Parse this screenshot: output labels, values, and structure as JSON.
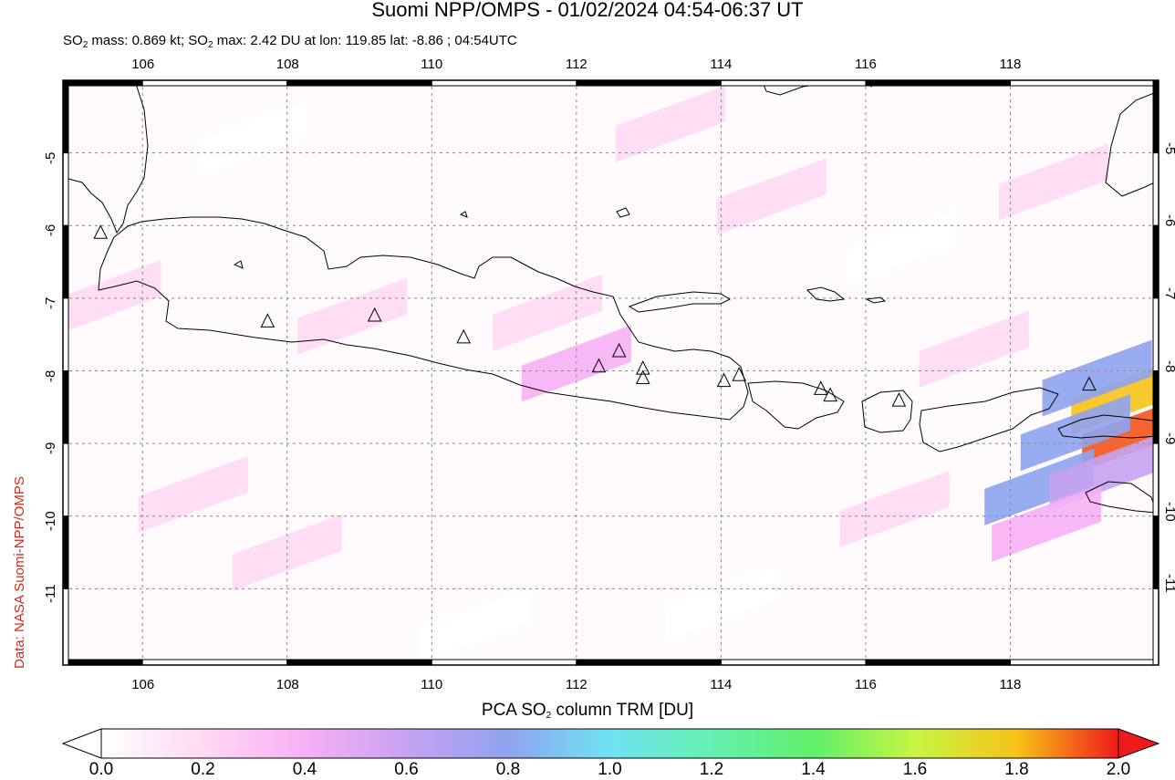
{
  "header": {
    "title": "Suomi NPP/OMPS - 01/02/2024 04:54-06:37 UT",
    "subtitle_parts": [
      "SO",
      "2",
      " mass: 0.869 kt; SO",
      "2",
      " max: 2.42 DU at lon: 119.85 lat: -8.86 ; 04:54UTC"
    ]
  },
  "credit": "Data: NASA Suomi-NPP/OMPS",
  "map": {
    "lon_range": [
      104.9,
      120.05
    ],
    "lat_range": [
      -12.05,
      -4.0
    ],
    "lon_ticks": [
      106,
      108,
      110,
      112,
      114,
      116,
      118
    ],
    "lon_tick_labels": [
      "106",
      "108",
      "110",
      "112",
      "114",
      "116",
      "118"
    ],
    "lat_ticks": [
      -5,
      -6,
      -7,
      -8,
      -9,
      -10,
      -11
    ],
    "lat_tick_labels": [
      "-5",
      "-6",
      "-7",
      "-8",
      "-9",
      "-10",
      "-11"
    ],
    "grid": true,
    "volcano_icon": "triangle-volcano-icon",
    "volcanoes": [
      [
        105.42,
        -6.1
      ],
      [
        107.73,
        -7.32
      ],
      [
        109.21,
        -7.24
      ],
      [
        110.44,
        -7.54
      ],
      [
        112.31,
        -7.94
      ],
      [
        112.59,
        -7.73
      ],
      [
        112.92,
        -7.97
      ],
      [
        112.92,
        -8.1
      ],
      [
        114.04,
        -8.14
      ],
      [
        114.25,
        -8.06
      ],
      [
        115.38,
        -8.25
      ],
      [
        115.51,
        -8.34
      ],
      [
        116.46,
        -8.41
      ],
      [
        119.09,
        -8.19
      ]
    ],
    "so2_cells": [
      {
        "lon": 119.6,
        "lat": -8.35,
        "du": 1.75
      },
      {
        "lon": 119.75,
        "lat": -8.85,
        "du": 2.0
      },
      {
        "lon": 118.9,
        "lat": -8.85,
        "du": 0.75
      },
      {
        "lon": 119.2,
        "lat": -8.1,
        "du": 0.75
      },
      {
        "lon": 118.4,
        "lat": -9.6,
        "du": 0.75
      },
      {
        "lon": 119.3,
        "lat": -9.4,
        "du": 0.55
      },
      {
        "lon": 118.5,
        "lat": -10.1,
        "du": 0.35
      },
      {
        "lon": 112.0,
        "lat": -7.9,
        "du": 0.3
      },
      {
        "lon": 117.5,
        "lat": -7.7,
        "du": 0.12
      },
      {
        "lon": 114.7,
        "lat": -5.6,
        "du": 0.12
      },
      {
        "lon": 108.9,
        "lat": -7.25,
        "du": 0.12
      },
      {
        "lon": 111.6,
        "lat": -7.2,
        "du": 0.1
      },
      {
        "lon": 108.0,
        "lat": -10.5,
        "du": 0.15
      },
      {
        "lon": 116.4,
        "lat": -9.9,
        "du": 0.12
      },
      {
        "lon": 105.5,
        "lat": -7.0,
        "du": 0.1
      },
      {
        "lon": 113.3,
        "lat": -4.6,
        "du": 0.1
      },
      {
        "lon": 118.6,
        "lat": -5.4,
        "du": 0.1
      },
      {
        "lon": 106.7,
        "lat": -9.7,
        "du": 0.1
      },
      {
        "lon": 110.6,
        "lat": -11.5,
        "du": 0.08
      },
      {
        "lon": 114.0,
        "lat": -11.2,
        "du": 0.08
      },
      {
        "lon": 116.5,
        "lat": -6.3,
        "du": 0.08
      },
      {
        "lon": 107.5,
        "lat": -4.8,
        "du": 0.08
      }
    ]
  },
  "colorbar": {
    "title_parts": [
      "PCA SO",
      "2",
      " column TRM [DU]"
    ],
    "labels": [
      "0.0",
      "0.2",
      "0.4",
      "0.6",
      "0.8",
      "1.0",
      "1.2",
      "1.4",
      "1.6",
      "1.8",
      "2.0"
    ],
    "colors": [
      "#ffffff",
      "#ffd9f3",
      "#f7b0f5",
      "#c7a2f2",
      "#8fa3f0",
      "#6fe3f3",
      "#63f0b0",
      "#5ff06a",
      "#c8f542",
      "#f7c318",
      "#f5541a",
      "#f01a1a"
    ]
  }
}
